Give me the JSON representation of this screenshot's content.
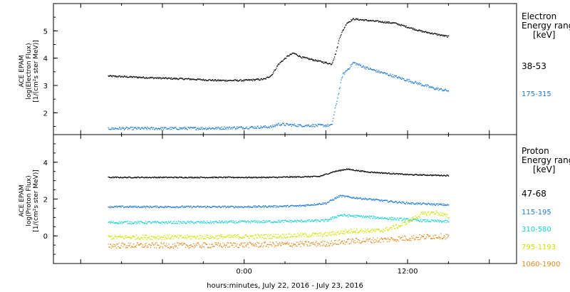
{
  "chart_data": [
    {
      "type": "scatter",
      "panel": "electron",
      "ylabel_lines": [
        "ACE EPAM",
        "log(Electron Flux)",
        "[1/(cm²s ster MeV)]"
      ],
      "ylim": [
        1.2,
        6.0
      ],
      "yticks": [
        2,
        3,
        4,
        5
      ],
      "legend": {
        "heading": [
          "Electron",
          "Energy ranges",
          "[keV]"
        ]
      },
      "series": [
        {
          "name": "38-53",
          "color": "#000000",
          "noise": 0.03,
          "points": [
            [
              -10,
              3.36
            ],
            [
              -8,
              3.32
            ],
            [
              -6,
              3.28
            ],
            [
              -4,
              3.25
            ],
            [
              -2,
              3.2
            ],
            [
              0,
              3.2
            ],
            [
              1.5,
              3.25
            ],
            [
              2,
              3.4
            ],
            [
              2.5,
              3.8
            ],
            [
              3.2,
              4.1
            ],
            [
              3.6,
              4.2
            ],
            [
              4.2,
              4.05
            ],
            [
              5.5,
              3.9
            ],
            [
              6.4,
              3.8
            ],
            [
              6.7,
              4.2
            ],
            [
              7,
              4.8
            ],
            [
              7.5,
              5.3
            ],
            [
              8,
              5.45
            ],
            [
              9,
              5.4
            ],
            [
              10,
              5.35
            ],
            [
              11,
              5.3
            ],
            [
              12,
              5.15
            ],
            [
              13,
              5.0
            ],
            [
              14,
              4.9
            ],
            [
              15,
              4.8
            ]
          ]
        },
        {
          "name": "175-315",
          "color": "#1f7ad3",
          "noise": 0.05,
          "points": [
            [
              -10,
              1.44
            ],
            [
              -6,
              1.44
            ],
            [
              -2,
              1.45
            ],
            [
              2,
              1.5
            ],
            [
              2.5,
              1.6
            ],
            [
              4,
              1.55
            ],
            [
              5.5,
              1.55
            ],
            [
              6.4,
              1.55
            ],
            [
              6.8,
              2.5
            ],
            [
              7.2,
              3.4
            ],
            [
              8,
              3.85
            ],
            [
              9,
              3.65
            ],
            [
              10,
              3.5
            ],
            [
              11,
              3.35
            ],
            [
              12,
              3.2
            ],
            [
              13,
              3.05
            ],
            [
              14,
              2.9
            ],
            [
              15,
              2.82
            ]
          ]
        }
      ]
    },
    {
      "type": "scatter",
      "panel": "proton",
      "ylabel_lines": [
        "ACE EPAM",
        "log(Proton Flux)",
        "[1/(cm²s ster MeV)]"
      ],
      "ylim": [
        -1.5,
        5.5
      ],
      "yticks": [
        0,
        2,
        4
      ],
      "xlabel": "hours:minutes, July 22, 2016 - July 23, 2016",
      "xlim": [
        -14,
        20
      ],
      "xticks": [
        {
          "value": 0,
          "label": "0:00"
        },
        {
          "value": 12,
          "label": "12:00"
        }
      ],
      "legend": {
        "heading": [
          "Proton",
          "Energy ranges",
          "[keV]"
        ]
      },
      "series": [
        {
          "name": "47-68",
          "color": "#000000",
          "noise": 0.03,
          "points": [
            [
              -10,
              3.2
            ],
            [
              -4,
              3.2
            ],
            [
              2,
              3.2
            ],
            [
              5.5,
              3.25
            ],
            [
              6.5,
              3.5
            ],
            [
              7.5,
              3.65
            ],
            [
              9,
              3.5
            ],
            [
              12,
              3.35
            ],
            [
              15,
              3.3
            ]
          ]
        },
        {
          "name": "115-195",
          "color": "#1f7ad3",
          "noise": 0.05,
          "points": [
            [
              -10,
              1.6
            ],
            [
              -6,
              1.6
            ],
            [
              0,
              1.6
            ],
            [
              4,
              1.65
            ],
            [
              6,
              1.8
            ],
            [
              7,
              2.2
            ],
            [
              8,
              2.1
            ],
            [
              10,
              1.95
            ],
            [
              12,
              1.8
            ],
            [
              15,
              1.7
            ]
          ]
        },
        {
          "name": "310-580",
          "color": "#16d0d0",
          "noise": 0.07,
          "points": [
            [
              -10,
              0.75
            ],
            [
              -4,
              0.75
            ],
            [
              2,
              0.8
            ],
            [
              6,
              0.85
            ],
            [
              7,
              1.15
            ],
            [
              8,
              1.1
            ],
            [
              10,
              1.0
            ],
            [
              13,
              0.85
            ],
            [
              15,
              0.8
            ]
          ]
        },
        {
          "name": "795-1193",
          "color": "#cfe000",
          "noise": 0.12,
          "points": [
            [
              -10,
              -0.05
            ],
            [
              -4,
              -0.05
            ],
            [
              2,
              0.0
            ],
            [
              6,
              0.1
            ],
            [
              8,
              0.3
            ],
            [
              10,
              0.3
            ],
            [
              11.5,
              0.6
            ],
            [
              13,
              1.2
            ],
            [
              14,
              1.3
            ],
            [
              15,
              1.05
            ]
          ]
        },
        {
          "name": "1060-1900",
          "color": "#e08a1e",
          "noise": 0.15,
          "points": [
            [
              -10,
              -0.5
            ],
            [
              -4,
              -0.5
            ],
            [
              2,
              -0.45
            ],
            [
              6,
              -0.4
            ],
            [
              8,
              -0.25
            ],
            [
              10,
              -0.2
            ],
            [
              12,
              -0.1
            ],
            [
              14,
              0.0
            ],
            [
              15,
              0.0
            ]
          ]
        }
      ]
    }
  ]
}
